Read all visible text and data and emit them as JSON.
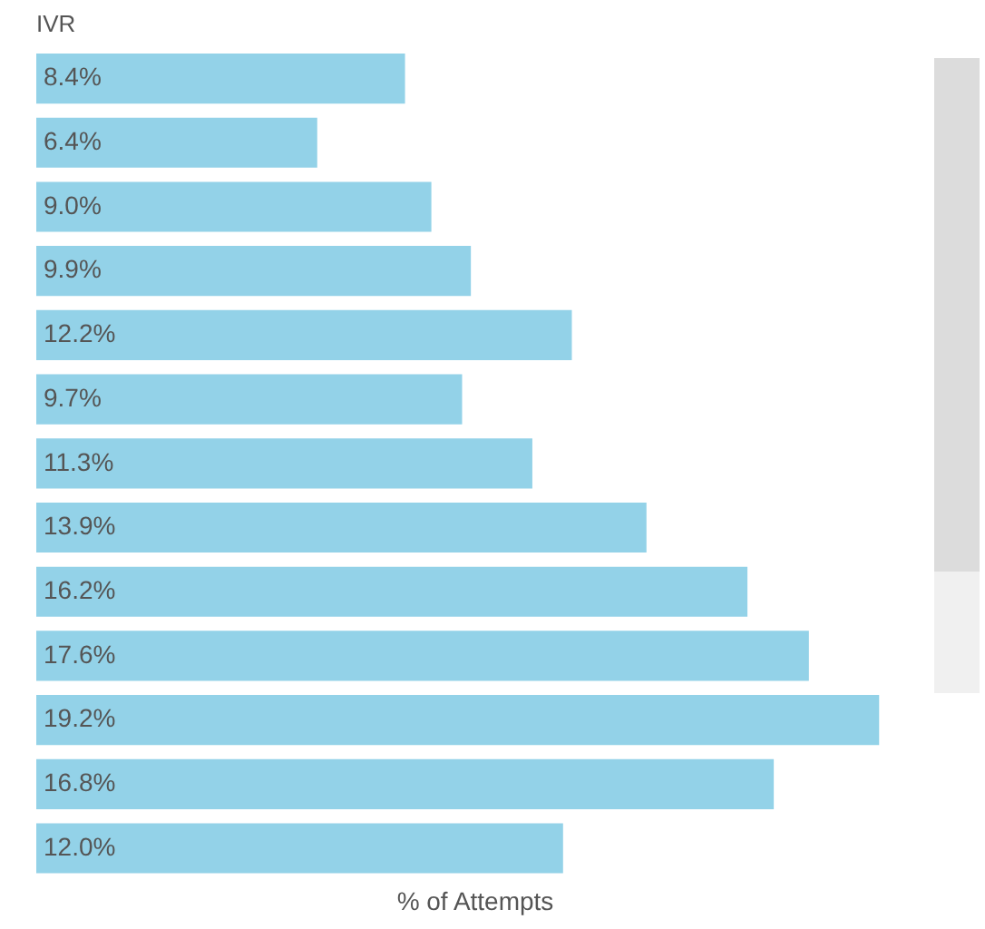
{
  "chart_data": {
    "type": "bar",
    "orientation": "horizontal",
    "title": "IVR",
    "xlabel": "% of Attempts",
    "categories": [
      null,
      null,
      null,
      null,
      null,
      null,
      null,
      null,
      null,
      null,
      null,
      null,
      null
    ],
    "values": [
      8.4,
      6.4,
      9.0,
      9.9,
      12.2,
      9.7,
      11.3,
      13.9,
      16.2,
      17.6,
      19.2,
      16.8,
      12.0
    ],
    "value_labels": [
      "8.4%",
      "6.4%",
      "9.0%",
      "9.9%",
      "12.2%",
      "9.7%",
      "11.3%",
      "13.9%",
      "16.2%",
      "17.6%",
      "19.2%",
      "16.8%",
      "12.0%"
    ],
    "color": "#93d2e8",
    "grid": false,
    "legend": false,
    "tick_labels": false
  }
}
